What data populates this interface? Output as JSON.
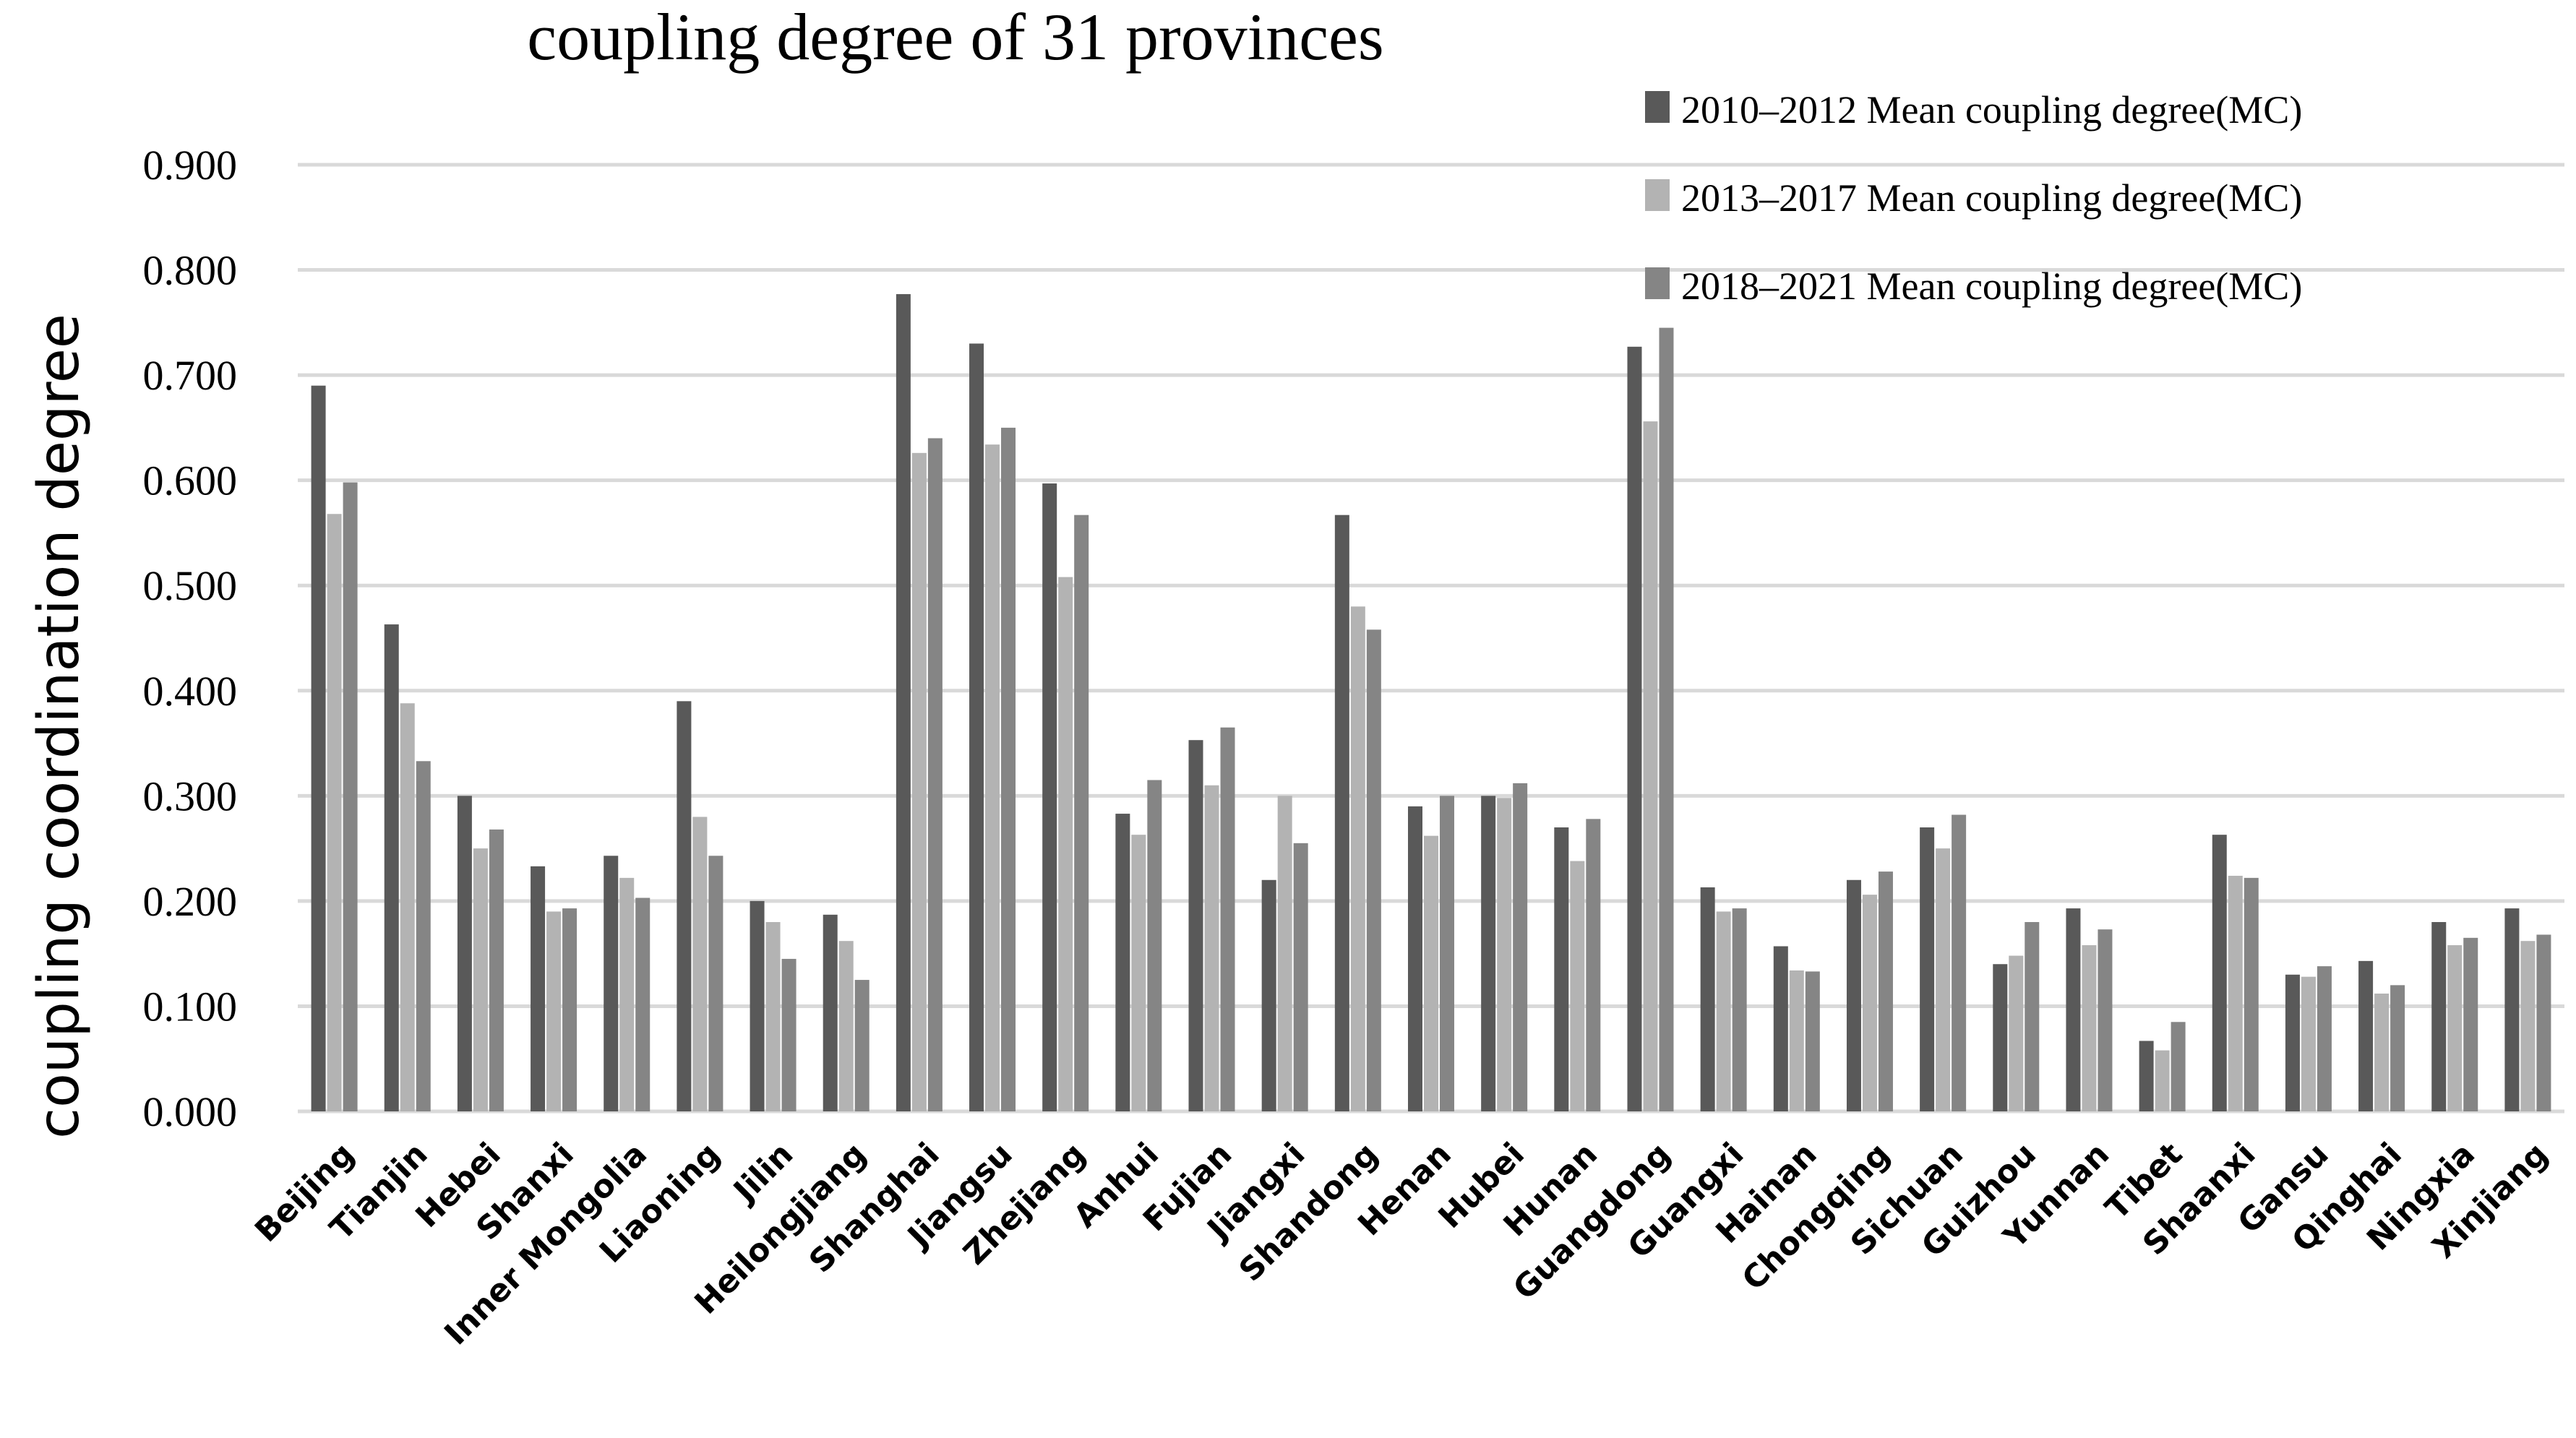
{
  "chart_data": {
    "type": "bar",
    "title": "coupling degree of 31 provinces",
    "xlabel": "",
    "ylabel": "coupling coordination degree",
    "ylim": [
      0,
      0.9
    ],
    "yticks": [
      "0.000",
      "0.100",
      "0.200",
      "0.300",
      "0.400",
      "0.500",
      "0.600",
      "0.700",
      "0.800",
      "0.900"
    ],
    "grid": true,
    "legend_position": "top-right",
    "categories": [
      "Beijing",
      "Tianjin",
      "Hebei",
      "Shanxi",
      "Inner Mongolia",
      "Liaoning",
      "Jilin",
      "Heilongjiang",
      "Shanghai",
      "Jiangsu",
      "Zhejiang",
      "Anhui",
      "Fujian",
      "Jiangxi",
      "Shandong",
      "Henan",
      "Hubei",
      "Hunan",
      "Guangdong",
      "Guangxi",
      "Hainan",
      "Chongqing",
      "Sichuan",
      "Guizhou",
      "Yunnan",
      "Tibet",
      "Shaanxi",
      "Gansu",
      "Qinghai",
      "Ningxia",
      "Xinjiang"
    ],
    "series": [
      {
        "name": "2010–2012 Mean coupling degree(MC)",
        "color": "#595959",
        "values": [
          0.69,
          0.463,
          0.3,
          0.233,
          0.243,
          0.39,
          0.2,
          0.187,
          0.777,
          0.73,
          0.597,
          0.283,
          0.353,
          0.22,
          0.567,
          0.29,
          0.3,
          0.27,
          0.727,
          0.213,
          0.157,
          0.22,
          0.27,
          0.14,
          0.193,
          0.067,
          0.263,
          0.13,
          0.143,
          0.18,
          0.193
        ]
      },
      {
        "name": "2013–2017 Mean coupling degree(MC)",
        "color": "#b3b3b3",
        "values": [
          0.568,
          0.388,
          0.25,
          0.19,
          0.222,
          0.28,
          0.18,
          0.162,
          0.626,
          0.634,
          0.508,
          0.263,
          0.31,
          0.3,
          0.48,
          0.262,
          0.298,
          0.238,
          0.656,
          0.19,
          0.134,
          0.206,
          0.25,
          0.148,
          0.158,
          0.058,
          0.224,
          0.128,
          0.112,
          0.158,
          0.162
        ]
      },
      {
        "name": "2018–2021 Mean coupling degree(MC)",
        "color": "#858585",
        "values": [
          0.598,
          0.333,
          0.268,
          0.193,
          0.203,
          0.243,
          0.145,
          0.125,
          0.64,
          0.65,
          0.567,
          0.315,
          0.365,
          0.255,
          0.458,
          0.3,
          0.312,
          0.278,
          0.745,
          0.193,
          0.133,
          0.228,
          0.282,
          0.18,
          0.173,
          0.085,
          0.222,
          0.138,
          0.12,
          0.165,
          0.168
        ]
      }
    ]
  }
}
